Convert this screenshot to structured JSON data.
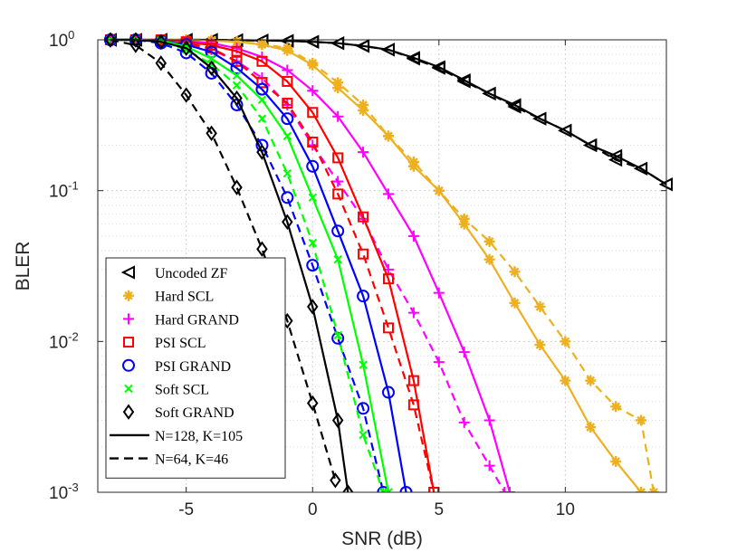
{
  "chart_data": {
    "type": "line",
    "xlabel": "SNR (dB)",
    "ylabel": "BLER",
    "xlim": [
      -8.5,
      14
    ],
    "ylim": [
      0.001,
      1
    ],
    "yscale": "log",
    "x_ticks": [
      {
        "value": -5,
        "label": "-5"
      },
      {
        "value": 0,
        "label": "0"
      },
      {
        "value": 5,
        "label": "5"
      },
      {
        "value": 10,
        "label": "10"
      }
    ],
    "y_ticks": [
      {
        "value": 1,
        "base": "10",
        "exp": "0"
      },
      {
        "value": 0.1,
        "base": "10",
        "exp": "-1"
      },
      {
        "value": 0.01,
        "base": "10",
        "exp": "-2"
      },
      {
        "value": 0.001,
        "base": "10",
        "exp": "-3"
      }
    ],
    "grid": true,
    "legend_position": "bottom-left",
    "series": [
      {
        "name": "Uncoded ZF",
        "color": "#000000",
        "marker": "triangle-left",
        "line": "solid",
        "x": [
          -8,
          -7,
          -6,
          -5,
          -4,
          -3,
          -2,
          -1,
          0,
          1,
          2,
          3,
          4,
          5,
          6,
          7,
          8,
          9,
          10,
          11,
          12,
          13,
          14
        ],
        "y": [
          1,
          1,
          1,
          1,
          1,
          0.995,
          0.99,
          0.985,
          0.97,
          0.95,
          0.91,
          0.86,
          0.76,
          0.66,
          0.54,
          0.44,
          0.37,
          0.3,
          0.25,
          0.2,
          0.17,
          0.14,
          0.11
        ]
      },
      {
        "color": "#000000",
        "marker": "triangle-left",
        "line": "dashed",
        "x": [
          -8,
          -7,
          -6,
          -5,
          -4,
          -3,
          -2,
          -1,
          0,
          1,
          2,
          3,
          4,
          5,
          6,
          7,
          8,
          9,
          10,
          11,
          12,
          13,
          14
        ],
        "y": [
          1,
          1,
          1,
          1,
          1,
          0.995,
          0.99,
          0.985,
          0.97,
          0.95,
          0.91,
          0.86,
          0.75,
          0.65,
          0.53,
          0.44,
          0.36,
          0.3,
          0.25,
          0.2,
          0.16,
          0.14,
          0.11
        ]
      },
      {
        "name": "Hard SCL",
        "color": "#EDB120",
        "marker": "star",
        "line": "solid",
        "x": [
          -8,
          -7,
          -6,
          -5,
          -4,
          -3,
          -2,
          -1,
          0,
          1,
          2,
          3,
          4,
          5,
          6,
          7,
          8,
          9,
          10,
          11,
          12,
          13
        ],
        "y": [
          1,
          1,
          1,
          1,
          0.99,
          0.97,
          0.93,
          0.85,
          0.68,
          0.48,
          0.34,
          0.23,
          0.145,
          0.1,
          0.06,
          0.035,
          0.018,
          0.0095,
          0.0055,
          0.0027,
          0.0016,
          0.001
        ]
      },
      {
        "color": "#EDB120",
        "marker": "star",
        "line": "dashed",
        "x": [
          -8,
          -7,
          -6,
          -5,
          -4,
          -3,
          -2,
          -1,
          0,
          1,
          2,
          3,
          4,
          5,
          6,
          7,
          8,
          9,
          10,
          11,
          12,
          13,
          13.5
        ],
        "y": [
          1,
          1,
          1,
          1,
          0.99,
          0.97,
          0.94,
          0.88,
          0.7,
          0.52,
          0.37,
          0.23,
          0.155,
          0.1,
          0.065,
          0.046,
          0.029,
          0.017,
          0.01,
          0.0055,
          0.0037,
          0.003,
          0.001
        ]
      },
      {
        "name": "Hard GRAND",
        "color": "#FF00FF",
        "marker": "plus",
        "line": "solid",
        "x": [
          -8,
          -7,
          -6,
          -5,
          -4,
          -3,
          -2,
          -1,
          0,
          1,
          2,
          3,
          4,
          5,
          6,
          7,
          7.8
        ],
        "y": [
          1,
          1,
          1,
          0.98,
          0.95,
          0.88,
          0.77,
          0.63,
          0.46,
          0.31,
          0.18,
          0.095,
          0.05,
          0.021,
          0.0085,
          0.003,
          0.001
        ]
      },
      {
        "color": "#FF00FF",
        "marker": "plus",
        "line": "dashed",
        "x": [
          -8,
          -7,
          -6,
          -5,
          -4,
          -3,
          -2,
          -1,
          0,
          1,
          2,
          3,
          4,
          5,
          6,
          7,
          7.6
        ],
        "y": [
          1,
          1,
          0.98,
          0.94,
          0.86,
          0.72,
          0.56,
          0.37,
          0.2,
          0.115,
          0.065,
          0.03,
          0.0155,
          0.0073,
          0.0029,
          0.0015,
          0.001
        ]
      },
      {
        "name": "PSI SCL",
        "color": "#FF0000",
        "marker": "square",
        "line": "solid",
        "x": [
          -8,
          -7,
          -6,
          -5,
          -4,
          -3,
          -2,
          -1,
          0,
          1,
          2,
          3,
          4,
          4.8
        ],
        "y": [
          1,
          1,
          1,
          0.97,
          0.92,
          0.84,
          0.72,
          0.53,
          0.33,
          0.165,
          0.067,
          0.026,
          0.0055,
          0.001
        ]
      },
      {
        "color": "#FF0000",
        "marker": "square",
        "line": "dashed",
        "x": [
          -8,
          -7,
          -6,
          -5,
          -4,
          -3,
          -2,
          -1,
          0,
          1,
          2,
          3,
          4,
          4.8
        ],
        "y": [
          1,
          1,
          0.98,
          0.95,
          0.88,
          0.72,
          0.52,
          0.38,
          0.21,
          0.095,
          0.038,
          0.0123,
          0.0038,
          0.001
        ]
      },
      {
        "name": "PSI GRAND",
        "color": "#0000FF",
        "marker": "circle",
        "line": "solid",
        "x": [
          -8,
          -7,
          -6,
          -5,
          -4,
          -3,
          -2,
          -1,
          0,
          1,
          2,
          3,
          3.7
        ],
        "y": [
          1,
          1,
          0.98,
          0.93,
          0.83,
          0.65,
          0.47,
          0.3,
          0.145,
          0.054,
          0.02,
          0.0046,
          0.001
        ]
      },
      {
        "color": "#0000FF",
        "marker": "circle",
        "line": "dashed",
        "x": [
          -8,
          -7,
          -6,
          -5,
          -4,
          -3,
          -2,
          -1,
          0,
          1,
          2,
          2.8
        ],
        "y": [
          1,
          1,
          0.95,
          0.82,
          0.6,
          0.37,
          0.2,
          0.09,
          0.032,
          0.0105,
          0.0036,
          0.001
        ]
      },
      {
        "name": "Soft SCL",
        "color": "#00FF00",
        "marker": "x",
        "line": "solid",
        "x": [
          -8,
          -7,
          -6,
          -5,
          -4,
          -3,
          -2,
          -1,
          0,
          1,
          2,
          3.0
        ],
        "y": [
          1,
          1,
          0.99,
          0.9,
          0.75,
          0.58,
          0.4,
          0.23,
          0.09,
          0.035,
          0.007,
          0.001
        ]
      },
      {
        "color": "#00FF00",
        "marker": "x",
        "line": "dashed",
        "x": [
          -8,
          -7,
          -6,
          -5,
          -4,
          -3,
          -2,
          -1,
          0,
          1,
          2,
          2.8
        ],
        "y": [
          1,
          1,
          0.98,
          0.86,
          0.69,
          0.5,
          0.3,
          0.13,
          0.045,
          0.011,
          0.0024,
          0.001
        ]
      },
      {
        "name": "Soft GRAND",
        "color": "#000000",
        "marker": "diamond",
        "line": "solid",
        "x": [
          -8,
          -7,
          -6,
          -5,
          -4,
          -3,
          -2,
          -1,
          0,
          1,
          1.4
        ],
        "y": [
          1,
          1,
          0.97,
          0.88,
          0.65,
          0.41,
          0.18,
          0.062,
          0.017,
          0.003,
          0.001
        ]
      },
      {
        "color": "#000000",
        "marker": "diamond",
        "line": "dashed",
        "x": [
          -8,
          -7,
          -6,
          -5,
          -4,
          -3,
          -2,
          -1,
          0,
          0.9
        ],
        "y": [
          1,
          0.92,
          0.7,
          0.43,
          0.24,
          0.105,
          0.041,
          0.0137,
          0.0039,
          0.0012
        ]
      }
    ],
    "legend": {
      "entries": [
        {
          "label": "Uncoded ZF",
          "marker": "triangle-left",
          "color": "#000000"
        },
        {
          "label": "Hard SCL",
          "marker": "star",
          "color": "#EDB120"
        },
        {
          "label": "Hard GRAND",
          "marker": "plus",
          "color": "#FF00FF"
        },
        {
          "label": "PSI SCL",
          "marker": "square",
          "color": "#FF0000"
        },
        {
          "label": "PSI GRAND",
          "marker": "circle",
          "color": "#0000FF"
        },
        {
          "label": "Soft SCL",
          "marker": "x",
          "color": "#00FF00"
        },
        {
          "label": "Soft GRAND",
          "marker": "diamond",
          "color": "#000000"
        },
        {
          "label": "N=128, K=105",
          "line": "solid",
          "color": "#000000"
        },
        {
          "label": "N=64, K=46",
          "line": "dashed",
          "color": "#000000"
        }
      ]
    }
  }
}
